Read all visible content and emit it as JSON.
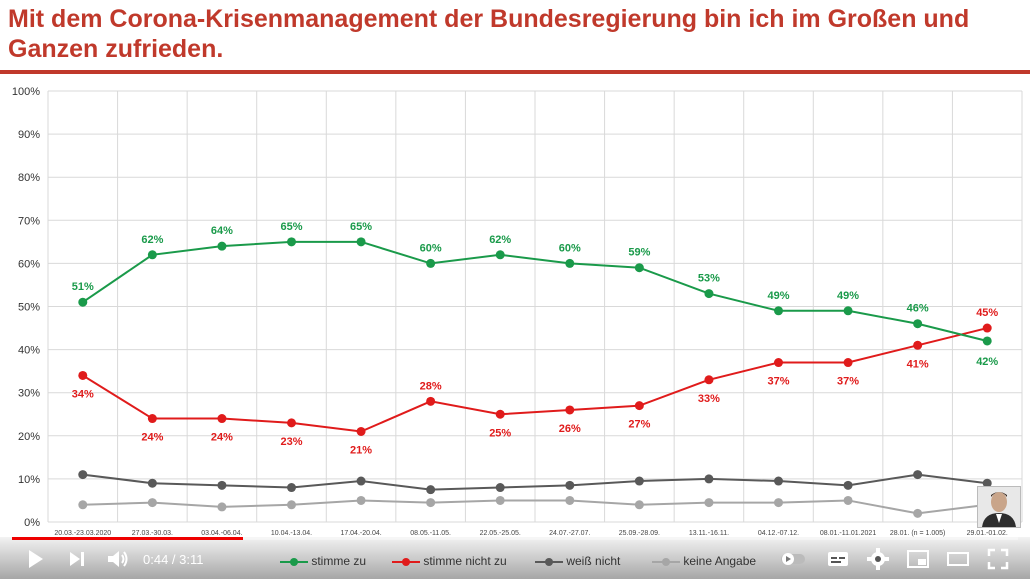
{
  "title": "Mit dem Corona-Krisenmanagement der Bundesregierung bin ich im Großen und Ganzen zufrieden.",
  "colors": {
    "title": "#c0392b",
    "stimme_zu": "#1a9a4a",
    "stimme_nicht_zu": "#e01b1b",
    "weiss_nicht": "#595959",
    "keine_angabe": "#a6a6a6",
    "progress": "#ee0000"
  },
  "chart_data": {
    "type": "line",
    "title": "Mit dem Corona-Krisenmanagement der Bundesregierung bin ich im Großen und Ganzen zufrieden.",
    "categories": [
      "20.03.-23.03.2020",
      "27.03.-30.03.",
      "03.04.-06.04.",
      "10.04.-13.04.",
      "17.04.-20.04.",
      "08.05.-11.05.",
      "22.05.-25.05.",
      "24.07.-27.07.",
      "25.09.-28.09.",
      "13.11.-16.11.",
      "04.12.-07.12.",
      "08.01.-11.01.2021",
      "28.01. (n = 1.005)",
      "29.01.-01.02."
    ],
    "ylim": [
      0,
      100
    ],
    "yticks": [
      "0%",
      "10%",
      "20%",
      "30%",
      "40%",
      "50%",
      "60%",
      "70%",
      "80%",
      "90%",
      "100%"
    ],
    "grid": true,
    "legend_position": "bottom",
    "series": [
      {
        "name": "stimme zu",
        "color": "#1a9a4a",
        "values": [
          51,
          62,
          64,
          65,
          65,
          60,
          62,
          60,
          59,
          53,
          49,
          49,
          46,
          42
        ],
        "labels": [
          "51%",
          "62%",
          "64%",
          "65%",
          "65%",
          "60%",
          "62%",
          "60%",
          "59%",
          "53%",
          "49%",
          "49%",
          "46%",
          "42%"
        ]
      },
      {
        "name": "stimme nicht zu",
        "color": "#e01b1b",
        "values": [
          34,
          24,
          24,
          23,
          21,
          28,
          25,
          26,
          27,
          33,
          37,
          37,
          41,
          45
        ],
        "labels": [
          "34%",
          "24%",
          "24%",
          "23%",
          "21%",
          "28%",
          "25%",
          "26%",
          "27%",
          "33%",
          "37%",
          "37%",
          "41%",
          "45%"
        ]
      },
      {
        "name": "weiß nicht",
        "color": "#595959",
        "values": [
          11,
          9,
          8.5,
          8,
          9.5,
          7.5,
          8,
          8.5,
          9.5,
          10,
          9.5,
          8.5,
          11,
          9
        ],
        "labels": []
      },
      {
        "name": "keine Angabe",
        "color": "#a6a6a6",
        "values": [
          4,
          4.5,
          3.5,
          4,
          5,
          4.5,
          5,
          5,
          4,
          4.5,
          4.5,
          5,
          2,
          4
        ],
        "labels": []
      }
    ]
  },
  "player": {
    "time": "0:44 / 3:11",
    "progress": 0.23,
    "buttons": [
      "play-icon",
      "next-icon",
      "volume-icon",
      "autoplay-toggle",
      "subtitles-icon",
      "settings-icon",
      "miniplayer-icon",
      "theater-icon",
      "fullscreen-icon"
    ]
  },
  "legend": [
    "stimme zu",
    "stimme nicht zu",
    "weiß nicht",
    "keine Angabe"
  ]
}
